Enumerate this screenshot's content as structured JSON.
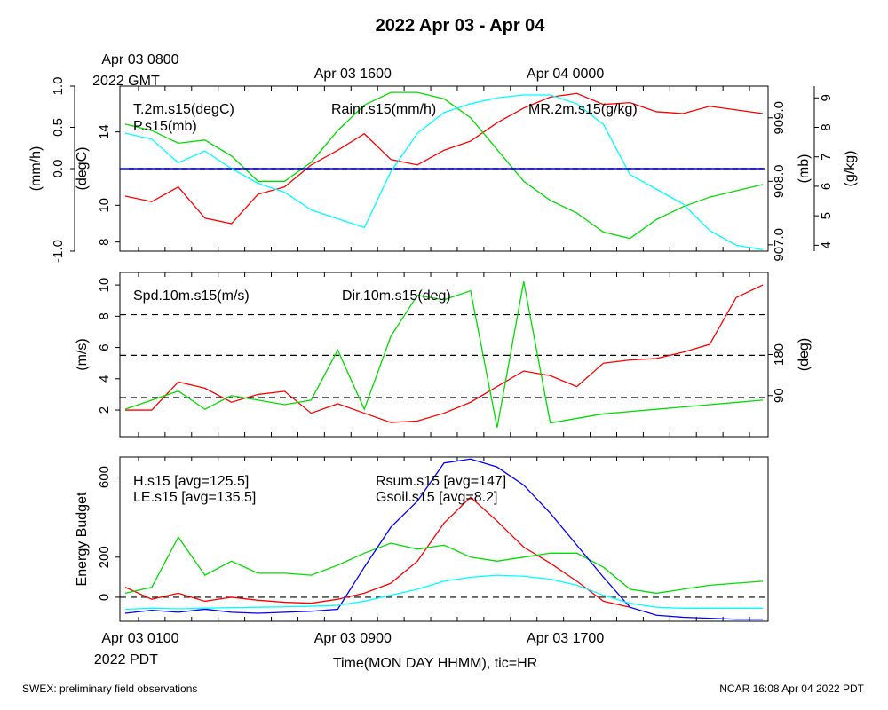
{
  "title": "2022 Apr 03 - Apr 04",
  "footer_left": "SWEX: preliminary field observations",
  "footer_right": "NCAR 16:08 Apr 04 2022 PDT",
  "colors": {
    "red": "#ff0000",
    "green": "#00dd00",
    "blue": "#0000ff",
    "cyan": "#00ffff",
    "black": "#000000"
  },
  "top_time_axis": {
    "labels": [
      {
        "line1": "Apr 03 0800",
        "line2": "2022 GMT",
        "hour": 1
      },
      {
        "line1": "Apr 03 1600",
        "line2": "",
        "hour": 9
      },
      {
        "line1": "Apr 04 0000",
        "line2": "",
        "hour": 17
      }
    ]
  },
  "bottom_time_axis": {
    "labels": [
      {
        "line1": "Apr 03 0100",
        "line2": "2022 PDT",
        "hour": 1
      },
      {
        "line1": "Apr 03 0900",
        "line2": "",
        "hour": 9
      },
      {
        "line1": "Apr 03 1700",
        "line2": "",
        "hour": 17
      }
    ],
    "xlabel": "Time(MON DAY HHMM), tic=HR"
  },
  "chart_data": [
    {
      "type": "line",
      "x_range_hours": [
        0.3,
        24.7
      ],
      "axes": {
        "rain": {
          "label": "(mm/h)",
          "range": [
            -1.0,
            1.0
          ],
          "ticks": [
            "-1.0",
            "0.0",
            "0.5",
            "1.0"
          ],
          "tick_values": [
            -1.0,
            0.0,
            0.5,
            1.0
          ]
        },
        "temp": {
          "label": "(degC)",
          "range": [
            7.5,
            16.5
          ],
          "ticks": [
            "8",
            "10",
            "14"
          ],
          "tick_values": [
            8,
            10,
            14
          ]
        },
        "pres": {
          "label": "(mb)",
          "range": [
            906.9,
            909.5
          ],
          "ticks": [
            "907.0",
            "908.0",
            "909.0"
          ],
          "tick_values": [
            907.0,
            908.0,
            909.0
          ]
        },
        "mr": {
          "label": "(g/kg)",
          "range": [
            3.8,
            9.4
          ],
          "ticks": [
            "4",
            "5",
            "6",
            "7",
            "8",
            "9"
          ],
          "tick_values": [
            4,
            5,
            6,
            7,
            8,
            9
          ]
        }
      },
      "series": [
        {
          "name": "T.2m.s15(degC)",
          "axis": "temp",
          "color": "#ff0000",
          "x": [
            0.5,
            1.5,
            2.5,
            3.5,
            4.5,
            5.5,
            6.5,
            7.5,
            8.5,
            9.5,
            10.5,
            11.5,
            12.5,
            13.5,
            14.5,
            15.5,
            16.5,
            17.5,
            18.5,
            19.5,
            20.5,
            21.5,
            22.5,
            23.5,
            24.5
          ],
          "y": [
            10.5,
            10.2,
            11.0,
            9.3,
            9.0,
            10.6,
            11.0,
            12.2,
            13.0,
            13.9,
            12.5,
            12.2,
            13.0,
            13.5,
            14.5,
            15.3,
            15.9,
            16.1,
            15.5,
            15.6,
            15.1,
            15.0,
            15.4,
            15.2,
            15.0
          ]
        },
        {
          "name": "P.s15(mb)",
          "axis": "pres",
          "color": "#00dd00",
          "x": [
            0.5,
            1.5,
            2.5,
            3.5,
            4.5,
            5.5,
            6.5,
            7.5,
            8.5,
            9.5,
            10.5,
            11.5,
            12.5,
            13.5,
            14.5,
            15.5,
            16.5,
            17.5,
            18.5,
            19.5,
            20.5,
            21.5,
            22.5,
            23.5,
            24.5
          ],
          "y": [
            908.9,
            908.8,
            908.6,
            908.65,
            908.4,
            908.0,
            908.0,
            908.3,
            908.8,
            909.2,
            909.4,
            909.4,
            909.3,
            909.0,
            908.5,
            908.0,
            907.7,
            907.5,
            907.2,
            907.1,
            907.4,
            907.6,
            907.75,
            907.85,
            907.95
          ]
        },
        {
          "name": "Rainr.s15(mm/h)",
          "axis": "rain",
          "color": "#0000ff",
          "x": [
            0.5,
            24.5
          ],
          "y": [
            0.0,
            0.0
          ]
        },
        {
          "name": "MR.2m.s15(g/kg)",
          "axis": "mr",
          "color": "#00ffff",
          "x": [
            0.5,
            1.5,
            2.5,
            3.5,
            4.5,
            5.5,
            6.5,
            7.5,
            8.5,
            9.5,
            10.5,
            11.5,
            12.5,
            13.5,
            14.5,
            15.5,
            16.5,
            17.5,
            18.5,
            19.5,
            20.5,
            21.5,
            22.5,
            23.5,
            24.5
          ],
          "y": [
            7.8,
            7.6,
            6.8,
            7.2,
            6.6,
            6.1,
            5.8,
            5.2,
            4.9,
            4.6,
            6.5,
            7.8,
            8.5,
            8.8,
            9.0,
            9.1,
            9.1,
            8.8,
            8.1,
            6.4,
            5.9,
            5.4,
            4.5,
            4.0,
            3.85
          ]
        }
      ]
    },
    {
      "type": "line",
      "x_range_hours": [
        0.3,
        24.7
      ],
      "axes": {
        "spd": {
          "label": "(m/s)",
          "range": [
            0.3,
            10.8
          ],
          "ticks": [
            "2",
            "4",
            "6",
            "8",
            "10"
          ],
          "tick_values": [
            2,
            4,
            6,
            8,
            10
          ]
        },
        "dir": {
          "label": "(deg)",
          "range": [
            0,
            360
          ],
          "ticks": [
            "90",
            "180"
          ],
          "tick_values": [
            90,
            180
          ]
        }
      },
      "reference_lines_spd": [
        2.8,
        5.5,
        8.1
      ],
      "series": [
        {
          "name": "Spd.10m.s15(m/s)",
          "axis": "spd",
          "color": "#ff0000",
          "x": [
            0.5,
            1.5,
            2.5,
            3.5,
            4.5,
            5.5,
            6.5,
            7.5,
            8.5,
            9.5,
            10.5,
            11.5,
            12.5,
            13.5,
            14.5,
            15.5,
            16.5,
            17.5,
            18.5,
            19.5,
            20.5,
            21.5,
            22.5,
            23.5,
            24.5
          ],
          "y": [
            2.0,
            2.0,
            3.8,
            3.4,
            2.5,
            3.0,
            3.2,
            1.8,
            2.4,
            1.8,
            1.2,
            1.3,
            1.8,
            2.5,
            3.5,
            4.5,
            4.2,
            3.5,
            5.0,
            5.2,
            5.3,
            5.7,
            6.2,
            9.2,
            10.0
          ]
        },
        {
          "name": "Dir.10m.s15(deg)",
          "axis": "dir",
          "color": "#00dd00",
          "x": [
            0.5,
            1.5,
            2.5,
            3.5,
            4.5,
            5.5,
            6.5,
            7.5,
            8.5,
            9.5,
            10.5,
            11.5,
            12.5,
            13.5,
            14.5,
            15.5,
            16.5,
            17.5,
            18.5,
            19.5,
            20.5,
            21.5,
            22.5,
            23.5,
            24.5
          ],
          "y": [
            60,
            80,
            100,
            60,
            90,
            80,
            70,
            80,
            190,
            60,
            220,
            310,
            300,
            320,
            20,
            340,
            30,
            40,
            50,
            55,
            60,
            65,
            70,
            75,
            80
          ]
        }
      ]
    },
    {
      "type": "line",
      "x_range_hours": [
        0.3,
        24.7
      ],
      "axes": {
        "energy": {
          "label": "Energy Budget",
          "range": [
            -120,
            700
          ],
          "ticks": [
            "0",
            "200",
            "600"
          ],
          "tick_values": [
            0,
            200,
            600
          ]
        }
      },
      "reference_lines": [
        0
      ],
      "series": [
        {
          "name": "H.s15",
          "legend": "H.s15 [avg=125.5]",
          "color": "#ff0000",
          "x": [
            0.5,
            1.5,
            2.5,
            3.5,
            4.5,
            5.5,
            6.5,
            7.5,
            8.5,
            9.5,
            10.5,
            11.5,
            12.5,
            13.5,
            14.5,
            15.5,
            16.5,
            17.5,
            18.5,
            19.5
          ],
          "y": [
            50,
            -10,
            20,
            -20,
            0,
            -15,
            -25,
            -30,
            -10,
            20,
            70,
            180,
            370,
            500,
            380,
            250,
            170,
            80,
            -20,
            -50
          ]
        },
        {
          "name": "LE.s15",
          "legend": "LE.s15 [avg=135.5]",
          "color": "#00dd00",
          "x": [
            0.5,
            1.5,
            2.5,
            3.5,
            4.5,
            5.5,
            6.5,
            7.5,
            8.5,
            9.5,
            10.5,
            11.5,
            12.5,
            13.5,
            14.5,
            15.5,
            16.5,
            17.5,
            18.5,
            19.5,
            20.5,
            21.5,
            22.5,
            23.5,
            24.5
          ],
          "y": [
            20,
            50,
            300,
            110,
            180,
            120,
            120,
            110,
            160,
            220,
            270,
            240,
            260,
            200,
            180,
            200,
            220,
            220,
            150,
            40,
            20,
            40,
            60,
            70,
            80
          ]
        },
        {
          "name": "Rsum.s15",
          "legend": "Rsum.s15 [avg=147]",
          "color": "#0000ff",
          "x": [
            0.5,
            1.5,
            2.5,
            3.5,
            4.5,
            5.5,
            6.5,
            7.5,
            8.5,
            9.5,
            10.5,
            11.5,
            12.5,
            13.5,
            14.5,
            15.5,
            16.5,
            17.5,
            18.5,
            19.5,
            20.5,
            21.5,
            22.5,
            23.5,
            24.5
          ],
          "y": [
            -80,
            -65,
            -75,
            -60,
            -75,
            -80,
            -75,
            -70,
            -60,
            150,
            350,
            480,
            670,
            690,
            650,
            560,
            420,
            260,
            100,
            -50,
            -90,
            -100,
            -105,
            -110,
            -110
          ]
        },
        {
          "name": "Gsoil.s15",
          "legend": "Gsoil.s15 [avg=8.2]",
          "color": "#00ffff",
          "x": [
            0.5,
            1.5,
            2.5,
            3.5,
            4.5,
            5.5,
            6.5,
            7.5,
            8.5,
            9.5,
            10.5,
            11.5,
            12.5,
            13.5,
            14.5,
            15.5,
            16.5,
            17.5,
            18.5,
            19.5,
            20.5,
            21.5,
            22.5,
            23.5,
            24.5
          ],
          "y": [
            -60,
            -55,
            -58,
            -55,
            -52,
            -50,
            -48,
            -45,
            -40,
            -20,
            10,
            40,
            80,
            100,
            110,
            105,
            90,
            60,
            10,
            -30,
            -50,
            -55,
            -55,
            -55,
            -55
          ]
        }
      ]
    }
  ]
}
